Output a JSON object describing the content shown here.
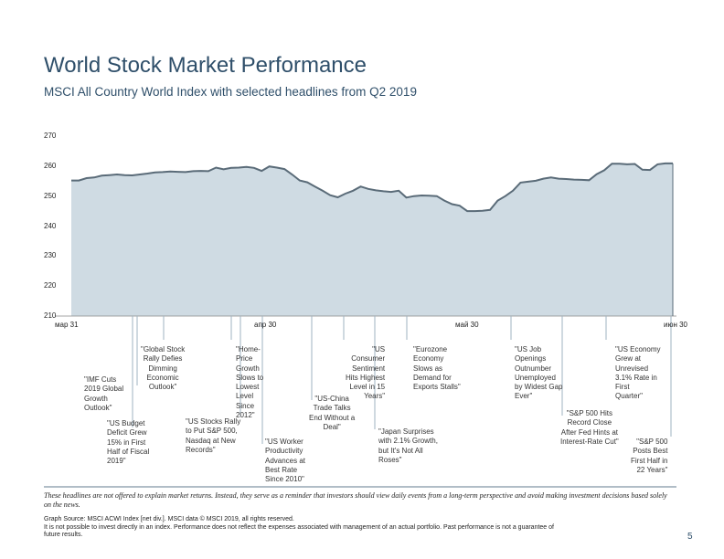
{
  "title": "World Stock Market Performance",
  "subtitle": "MSCI All Country World Index with selected headlines from Q2 2019",
  "chart_data": {
    "type": "area",
    "ylim": [
      210,
      270
    ],
    "yticks": [
      "270",
      "260",
      "250",
      "240",
      "230",
      "220",
      "210"
    ],
    "xticks": [
      "мар 31",
      "апр 30",
      "май 30",
      "июн 30"
    ],
    "color_fill": "#cfdbe3",
    "color_line": "#5a6b78",
    "values": [
      255.2,
      255.2,
      256.0,
      256.2,
      256.8,
      257.0,
      257.2,
      257.0,
      256.9,
      257.2,
      257.5,
      257.9,
      258.0,
      258.2,
      258.1,
      258.0,
      258.3,
      258.4,
      258.3,
      259.5,
      258.9,
      259.4,
      259.5,
      259.7,
      259.4,
      258.4,
      259.9,
      259.5,
      259.0,
      257.2,
      255.2,
      254.6,
      253.2,
      251.8,
      250.3,
      249.6,
      250.8,
      251.8,
      253.2,
      252.4,
      251.9,
      251.6,
      251.4,
      251.8,
      249.5,
      250.0,
      250.2,
      250.1,
      250.0,
      248.5,
      247.3,
      246.8,
      245.0,
      245.0,
      245.1,
      245.4,
      248.5,
      250.0,
      251.8,
      254.5,
      254.8,
      255.1,
      255.8,
      256.2,
      255.8,
      255.7,
      255.5,
      255.4,
      255.3,
      257.3,
      258.6,
      260.8,
      260.8,
      260.6,
      260.7,
      258.8,
      258.7,
      260.6,
      260.9,
      260.9
    ]
  },
  "headlines": [
    {
      "id": "imf",
      "text": "\"IMF Cuts\n2019 Global\nGrowth\nOutlook\""
    },
    {
      "id": "global-rally",
      "text": "\"Global Stock\nRally Defies\nDimming\nEconomic\nOutlook\""
    },
    {
      "id": "budget",
      "text": "\"US Budget\nDeficit Grew\n15% in First\nHalf of Fiscal\n2019\""
    },
    {
      "id": "home-price",
      "text": "\"Home-\nPrice\nGrowth\nSlows to\nLowest\nLevel\nSince\n2012\""
    },
    {
      "id": "stocks-rally",
      "text": "\"US Stocks Rally\nto Put S&P 500,\nNasdaq at New\nRecords\""
    },
    {
      "id": "worker",
      "text": "\"US Worker\nProductivity\nAdvances at\nBest Rate\nSince 2010\""
    },
    {
      "id": "consumer",
      "text": "\"US\nConsumer\nSentiment\nHits Highest\nLevel in 15\nYears\""
    },
    {
      "id": "china",
      "text": "\"US-China\nTrade Talks\nEnd Without a\nDeal\""
    },
    {
      "id": "eurozone",
      "text": "\"Eurozone\nEconomy\nSlows as\nDemand for\nExports Stalls\""
    },
    {
      "id": "japan",
      "text": "\"Japan Surprises\nwith 2.1% Growth,\nbut It's Not All\nRoses\""
    },
    {
      "id": "job",
      "text": "\"US Job\nOpenings\nOutnumber\nUnemployed\nby Widest Gap\nEver\""
    },
    {
      "id": "sp-hits",
      "text": "\"S&P 500 Hits\nRecord Close\nAfter Fed Hints at\nInterest-Rate Cut\""
    },
    {
      "id": "economy-grew",
      "text": "\"US Economy\nGrew at\nUnrevised\n3.1% Rate in\nFirst\nQuarter\""
    },
    {
      "id": "sp-best",
      "text": "\"S&P 500\nPosts Best\nFirst Half in\n22 Years\""
    }
  ],
  "note": "These headlines are not offered to explain market returns. Instead, they serve as a reminder that investors should view daily events from a long-term perspective and avoid making investment decisions based solely on the news.",
  "source_line1": "Graph Source: MSCI ACWI Index [net div.]. MSCI data © MSCI 2019, all rights reserved.",
  "source_line2": "It is not possible to invest directly in an index. Performance does not reflect the expenses associated with management of an actual portfolio. Past performance is not a guarantee of",
  "source_line3": "future results.",
  "page_number": "5"
}
